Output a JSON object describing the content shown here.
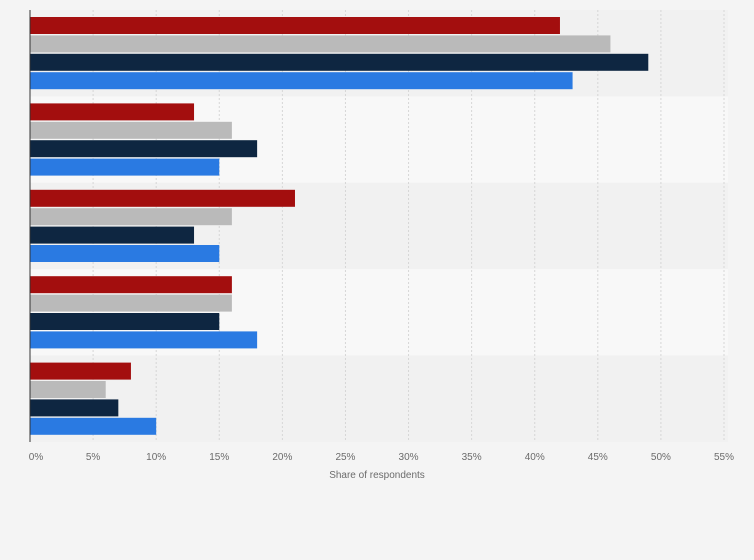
{
  "chart_data": {
    "type": "bar",
    "orientation": "horizontal",
    "title": "",
    "xlabel": "Share of respondents",
    "ylabel": "",
    "xlim": [
      0,
      55
    ],
    "x_ticks": [
      0,
      5,
      10,
      15,
      20,
      25,
      30,
      35,
      40,
      45,
      50,
      55
    ],
    "x_tick_labels": [
      "0%",
      "5%",
      "10%",
      "15%",
      "20%",
      "25%",
      "30%",
      "35%",
      "40%",
      "45%",
      "50%",
      "55%"
    ],
    "grid": true,
    "legend": "none",
    "categories": [
      "",
      "",
      "",
      "",
      ""
    ],
    "series": [
      {
        "color": "#a30e0e",
        "values": [
          42,
          13,
          21,
          16,
          8
        ]
      },
      {
        "color": "#bababa",
        "values": [
          46,
          16,
          16,
          16,
          6
        ]
      },
      {
        "color": "#0e2641",
        "values": [
          49,
          18,
          13,
          15,
          7
        ]
      },
      {
        "color": "#2a7ae2",
        "values": [
          43,
          15,
          15,
          18,
          10
        ]
      }
    ]
  },
  "colors": {
    "page_background": "#f4f4f4",
    "band_dark": "#f1f1f1",
    "band_light": "#f8f8f8",
    "gridline": "#d6d6d6",
    "axis_line": "#333333",
    "tick_text": "#6b6b6b"
  }
}
